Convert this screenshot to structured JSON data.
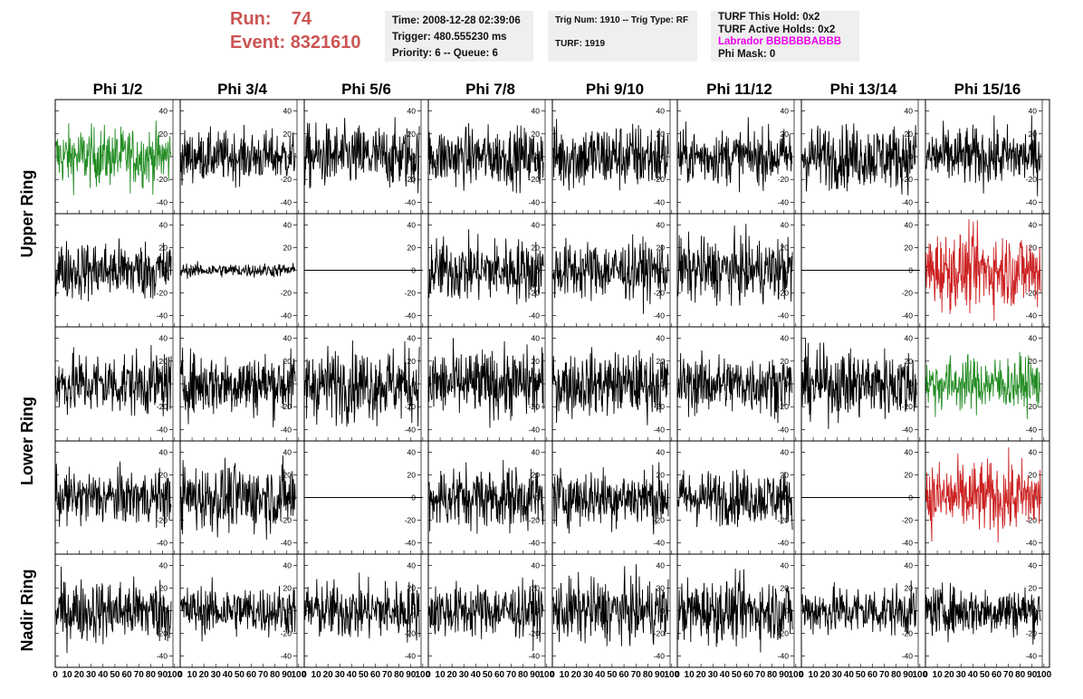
{
  "header": {
    "run_label": "Run:",
    "run_value": "74",
    "event_label": "Event:",
    "event_value": "8321610"
  },
  "time_box": {
    "time": "Time: 2008-12-28 02:39:06",
    "trigger": "Trigger: 480.555230 ms",
    "priority": "Priority: 6 -- Queue: 6"
  },
  "trig_box": {
    "trig": "Trig Num: 1910 -- Trig Type: RF",
    "turf": "TURF: 1919"
  },
  "turf_box": {
    "this_hold": "TURF This Hold: 0x2",
    "active_holds": "TURF Active Holds: 0x2",
    "labrador": "Labrador BBBBBBABBB",
    "phi_mask": "Phi Mask: 0"
  },
  "colors": {
    "header": "#cc5555",
    "labrador": "#ee00ee",
    "trace_default": "#000000",
    "trace_green": "#228b22",
    "trace_red": "#cc2222",
    "info_bg": "#efefef"
  },
  "chart_data": {
    "type": "line",
    "columns": [
      "Phi 1/2",
      "Phi 3/4",
      "Phi 5/6",
      "Phi 7/8",
      "Phi 9/10",
      "Phi 11/12",
      "Phi 13/14",
      "Phi 15/16"
    ],
    "rows": [
      "Upper Ring",
      "",
      "Lower Ring",
      "",
      "Nadir Ring"
    ],
    "xlim": [
      0,
      100
    ],
    "ylim": [
      -50,
      50
    ],
    "x_ticks": [
      "0",
      "10",
      "20",
      "30",
      "40",
      "50",
      "60",
      "70",
      "80",
      "90",
      "100"
    ],
    "y_ticks": [
      "40",
      "20",
      "0",
      "-20",
      "-40"
    ],
    "panels": [
      [
        {
          "style": "green",
          "amp": 13
        },
        {
          "style": "black",
          "amp": 11
        },
        {
          "style": "black",
          "amp": 14
        },
        {
          "style": "black",
          "amp": 13
        },
        {
          "style": "black",
          "amp": 15
        },
        {
          "style": "black",
          "amp": 12
        },
        {
          "style": "black",
          "amp": 14
        },
        {
          "style": "black",
          "amp": 13
        }
      ],
      [
        {
          "style": "black",
          "amp": 13
        },
        {
          "style": "black",
          "amp": 3
        },
        {
          "style": "flat",
          "amp": 0
        },
        {
          "style": "black",
          "amp": 14
        },
        {
          "style": "black",
          "amp": 13
        },
        {
          "style": "black",
          "amp": 14
        },
        {
          "style": "flat",
          "amp": 0
        },
        {
          "style": "red",
          "amp": 17
        }
      ],
      [
        {
          "style": "black",
          "amp": 14
        },
        {
          "style": "black",
          "amp": 14
        },
        {
          "style": "black",
          "amp": 16
        },
        {
          "style": "black",
          "amp": 15
        },
        {
          "style": "black",
          "amp": 14
        },
        {
          "style": "black",
          "amp": 13
        },
        {
          "style": "black",
          "amp": 15
        },
        {
          "style": "green",
          "amp": 12
        }
      ],
      [
        {
          "style": "black",
          "amp": 12
        },
        {
          "style": "black",
          "amp": 15
        },
        {
          "style": "flat",
          "amp": 0
        },
        {
          "style": "black",
          "amp": 14
        },
        {
          "style": "black",
          "amp": 13
        },
        {
          "style": "black",
          "amp": 12
        },
        {
          "style": "flat",
          "amp": 0
        },
        {
          "style": "red",
          "amp": 16
        }
      ],
      [
        {
          "style": "black",
          "amp": 14
        },
        {
          "style": "black",
          "amp": 11
        },
        {
          "style": "black",
          "amp": 13
        },
        {
          "style": "black",
          "amp": 12
        },
        {
          "style": "black",
          "amp": 14
        },
        {
          "style": "black",
          "amp": 14
        },
        {
          "style": "black",
          "amp": 11
        },
        {
          "style": "black",
          "amp": 11
        }
      ]
    ]
  }
}
